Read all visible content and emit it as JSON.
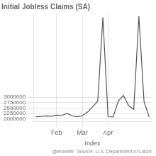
{
  "chart_data": {
    "type": "line",
    "title": "Initial Jobless Claims (SA)",
    "xlabel": "Index",
    "annotations": [
      "@erniefer  Source: U.S. Department of Labor"
    ],
    "categories": [
      null,
      null,
      null,
      null,
      "Feb",
      null,
      null,
      null,
      null,
      "Mar",
      null,
      null,
      null,
      null,
      "Apr",
      null,
      null,
      null,
      null,
      null,
      null,
      null,
      null
    ],
    "values": [
      2110000,
      2120000,
      2150000,
      2130000,
      2180000,
      2160000,
      2260000,
      2150000,
      2110000,
      2150000,
      2320000,
      2560000,
      2820000,
      6650000,
      2110000,
      2100000,
      2820000,
      3080000,
      2610000,
      2450000,
      6710000,
      2800000,
      2100000
    ],
    "color": "#555555",
    "ylim": [
      1900000,
      6800000
    ],
    "yticks": [
      2000000,
      2250000,
      2500000,
      2750000,
      3000000
    ],
    "grid": true
  }
}
